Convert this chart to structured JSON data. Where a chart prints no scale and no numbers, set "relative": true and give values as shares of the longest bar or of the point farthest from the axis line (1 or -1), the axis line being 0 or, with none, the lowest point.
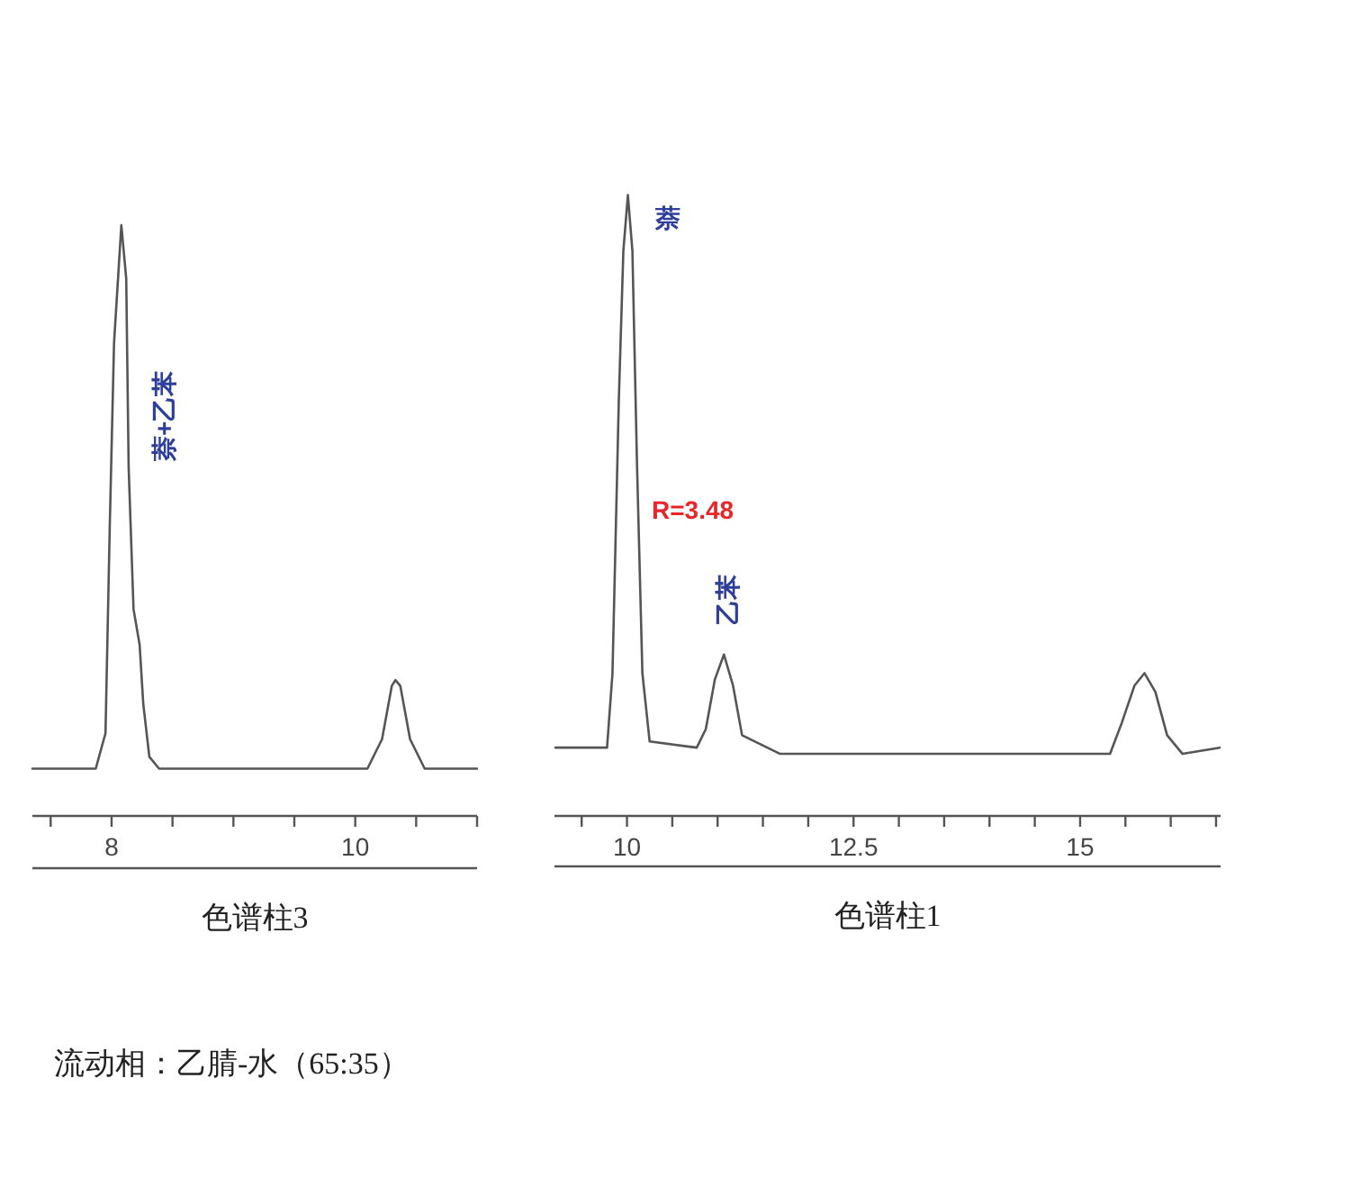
{
  "chart_data": [
    {
      "type": "line",
      "relative": true,
      "tick_labels": "x",
      "grid": false,
      "xlabel": "色谱柱3",
      "xlim": [
        7.35,
        11
      ],
      "xticks": [
        {
          "value": 7.5,
          "label": null
        },
        8,
        {
          "value": 8.5,
          "label": null
        },
        {
          "value": 9,
          "label": null
        },
        {
          "value": 9.5,
          "label": null
        },
        10,
        {
          "value": 10.5,
          "label": null
        },
        {
          "value": 11,
          "label": null
        }
      ],
      "series": [
        {
          "color": "#555555",
          "x": [
            7.35,
            7.87,
            7.95,
            7.985,
            8.02,
            8.08,
            8.12,
            8.14,
            8.18,
            8.23,
            8.26,
            8.31,
            8.39,
            10.1,
            10.22,
            10.3,
            10.33,
            10.37,
            10.45,
            10.57,
            11
          ],
          "values": [
            0.08,
            0.08,
            0.14,
            0.49,
            0.8,
            1,
            0.91,
            0.59,
            0.35,
            0.29,
            0.19,
            0.1,
            0.08,
            0.08,
            0.13,
            0.22,
            0.23,
            0.22,
            0.13,
            0.08,
            0.08
          ]
        }
      ],
      "annotations": [
        "萘+乙苯",
        "流动相：乙腈-水（65:35）"
      ]
    },
    {
      "type": "line",
      "relative": true,
      "tick_labels": "x",
      "grid": false,
      "xlabel": "色谱柱1",
      "xlim": [
        9.2,
        16.55
      ],
      "xticks": [
        {
          "value": 9.5,
          "label": null
        },
        10,
        {
          "value": 10.5,
          "label": null
        },
        {
          "value": 11,
          "label": null
        },
        {
          "value": 11.5,
          "label": null
        },
        {
          "value": 12,
          "label": null
        },
        12.5,
        {
          "value": 13,
          "label": null
        },
        {
          "value": 13.5,
          "label": null
        },
        {
          "value": 14,
          "label": null
        },
        {
          "value": 14.5,
          "label": null
        },
        15,
        {
          "value": 15.5,
          "label": null
        },
        {
          "value": 16,
          "label": null
        },
        {
          "value": 16.5,
          "label": null
        }
      ],
      "series": [
        {
          "color": "#555555",
          "x": [
            9.21,
            9.78,
            9.84,
            9.91,
            9.96,
            10.01,
            10.06,
            10.11,
            10.17,
            10.25,
            10.77,
            10.87,
            10.97,
            11.07,
            11.17,
            11.27,
            11.69,
            12.82,
            15.33,
            15.46,
            15.6,
            15.71,
            15.83,
            15.96,
            16.13,
            16.54
          ],
          "values": [
            0.11,
            0.11,
            0.23,
            0.67,
            0.91,
            1,
            0.91,
            0.57,
            0.23,
            0.12,
            0.11,
            0.14,
            0.22,
            0.26,
            0.21,
            0.13,
            0.1,
            0.1,
            0.1,
            0.15,
            0.21,
            0.23,
            0.2,
            0.13,
            0.1,
            0.11
          ]
        }
      ],
      "annotations": [
        "萘",
        "R=3.48",
        "乙苯"
      ]
    }
  ]
}
